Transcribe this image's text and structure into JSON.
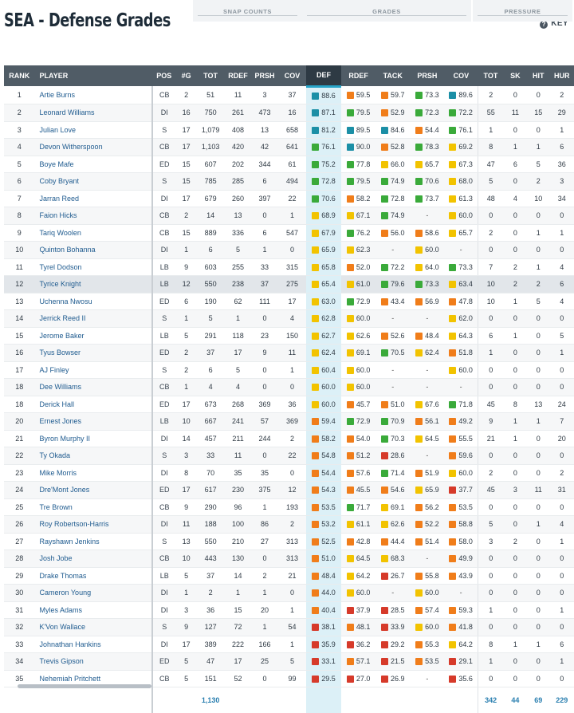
{
  "page": {
    "title": "SEA - Defense Grades",
    "key_label": "KEY"
  },
  "group_headers": {
    "snap_counts": "SNAP COUNTS",
    "grades": "GRADES",
    "pressure": "PRESSURE"
  },
  "columns": [
    "RANK",
    "PLAYER",
    "POS",
    "#G",
    "TOT",
    "RDEF",
    "PRSH",
    "COV",
    "DEF",
    "RDEF",
    "TACK",
    "PRSH",
    "COV",
    "TOT",
    "SK",
    "HIT",
    "HUR"
  ],
  "grade_colors": {
    "elite": "#1b8fa6",
    "good": "#3aaa3a",
    "avg": "#f2c300",
    "below": "#f07d1a",
    "poor": "#d63a2a"
  },
  "rows": [
    [
      "1",
      "Artie Burns",
      "CB",
      "2",
      "51",
      "11",
      "3",
      "37",
      "88.6",
      "59.5",
      "59.7",
      "73.3",
      "89.6",
      "2",
      "0",
      "0",
      "2"
    ],
    [
      "2",
      "Leonard Williams",
      "DI",
      "16",
      "750",
      "261",
      "473",
      "16",
      "87.1",
      "79.5",
      "52.9",
      "72.3",
      "72.2",
      "55",
      "11",
      "15",
      "29"
    ],
    [
      "3",
      "Julian Love",
      "S",
      "17",
      "1,079",
      "408",
      "13",
      "658",
      "81.2",
      "89.5",
      "84.6",
      "54.4",
      "76.1",
      "1",
      "0",
      "0",
      "1"
    ],
    [
      "4",
      "Devon Witherspoon",
      "CB",
      "17",
      "1,103",
      "420",
      "42",
      "641",
      "76.1",
      "90.0",
      "52.8",
      "78.3",
      "69.2",
      "8",
      "1",
      "1",
      "6"
    ],
    [
      "5",
      "Boye Mafe",
      "ED",
      "15",
      "607",
      "202",
      "344",
      "61",
      "75.2",
      "77.8",
      "66.0",
      "65.7",
      "67.3",
      "47",
      "6",
      "5",
      "36"
    ],
    [
      "6",
      "Coby Bryant",
      "S",
      "15",
      "785",
      "285",
      "6",
      "494",
      "72.8",
      "79.5",
      "74.9",
      "70.6",
      "68.0",
      "5",
      "0",
      "2",
      "3"
    ],
    [
      "7",
      "Jarran Reed",
      "DI",
      "17",
      "679",
      "260",
      "397",
      "22",
      "70.6",
      "58.2",
      "72.8",
      "73.7",
      "61.3",
      "48",
      "4",
      "10",
      "34"
    ],
    [
      "8",
      "Faion Hicks",
      "CB",
      "2",
      "14",
      "13",
      "0",
      "1",
      "68.9",
      "67.1",
      "74.9",
      "-",
      "60.0",
      "0",
      "0",
      "0",
      "0"
    ],
    [
      "9",
      "Tariq Woolen",
      "CB",
      "15",
      "889",
      "336",
      "6",
      "547",
      "67.9",
      "76.2",
      "56.0",
      "58.6",
      "65.7",
      "2",
      "0",
      "1",
      "1"
    ],
    [
      "10",
      "Quinton Bohanna",
      "DI",
      "1",
      "6",
      "5",
      "1",
      "0",
      "65.9",
      "62.3",
      "-",
      "60.0",
      "-",
      "0",
      "0",
      "0",
      "0"
    ],
    [
      "11",
      "Tyrel Dodson",
      "LB",
      "9",
      "603",
      "255",
      "33",
      "315",
      "65.8",
      "52.0",
      "72.2",
      "64.0",
      "73.3",
      "7",
      "2",
      "1",
      "4"
    ],
    [
      "12",
      "Tyrice Knight",
      "LB",
      "12",
      "550",
      "238",
      "37",
      "275",
      "65.4",
      "61.0",
      "79.6",
      "73.3",
      "63.4",
      "10",
      "2",
      "2",
      "6"
    ],
    [
      "13",
      "Uchenna Nwosu",
      "ED",
      "6",
      "190",
      "62",
      "111",
      "17",
      "63.0",
      "72.9",
      "43.4",
      "56.9",
      "47.8",
      "10",
      "1",
      "5",
      "4"
    ],
    [
      "14",
      "Jerrick Reed II",
      "S",
      "1",
      "5",
      "1",
      "0",
      "4",
      "62.8",
      "60.0",
      "-",
      "-",
      "62.0",
      "0",
      "0",
      "0",
      "0"
    ],
    [
      "15",
      "Jerome Baker",
      "LB",
      "5",
      "291",
      "118",
      "23",
      "150",
      "62.7",
      "62.6",
      "52.6",
      "48.4",
      "64.3",
      "6",
      "1",
      "0",
      "5"
    ],
    [
      "16",
      "Tyus Bowser",
      "ED",
      "2",
      "37",
      "17",
      "9",
      "11",
      "62.4",
      "69.1",
      "70.5",
      "62.4",
      "51.8",
      "1",
      "0",
      "0",
      "1"
    ],
    [
      "17",
      "AJ Finley",
      "S",
      "2",
      "6",
      "5",
      "0",
      "1",
      "60.4",
      "60.0",
      "-",
      "-",
      "60.0",
      "0",
      "0",
      "0",
      "0"
    ],
    [
      "18",
      "Dee Williams",
      "CB",
      "1",
      "4",
      "4",
      "0",
      "0",
      "60.0",
      "60.0",
      "-",
      "-",
      "-",
      "0",
      "0",
      "0",
      "0"
    ],
    [
      "18",
      "Derick Hall",
      "ED",
      "17",
      "673",
      "268",
      "369",
      "36",
      "60.0",
      "45.7",
      "51.0",
      "67.6",
      "71.8",
      "45",
      "8",
      "13",
      "24"
    ],
    [
      "20",
      "Ernest Jones",
      "LB",
      "10",
      "667",
      "241",
      "57",
      "369",
      "59.4",
      "72.9",
      "70.9",
      "56.1",
      "49.2",
      "9",
      "1",
      "1",
      "7"
    ],
    [
      "21",
      "Byron Murphy II",
      "DI",
      "14",
      "457",
      "211",
      "244",
      "2",
      "58.2",
      "54.0",
      "70.3",
      "64.5",
      "55.5",
      "21",
      "1",
      "0",
      "20"
    ],
    [
      "22",
      "Ty Okada",
      "S",
      "3",
      "33",
      "11",
      "0",
      "22",
      "54.8",
      "51.2",
      "28.6",
      "-",
      "59.6",
      "0",
      "0",
      "0",
      "0"
    ],
    [
      "23",
      "Mike Morris",
      "DI",
      "8",
      "70",
      "35",
      "35",
      "0",
      "54.4",
      "57.6",
      "71.4",
      "51.9",
      "60.0",
      "2",
      "0",
      "0",
      "2"
    ],
    [
      "24",
      "Dre'Mont Jones",
      "ED",
      "17",
      "617",
      "230",
      "375",
      "12",
      "54.3",
      "45.5",
      "54.6",
      "65.9",
      "37.7",
      "45",
      "3",
      "11",
      "31"
    ],
    [
      "25",
      "Tre Brown",
      "CB",
      "9",
      "290",
      "96",
      "1",
      "193",
      "53.5",
      "71.7",
      "69.1",
      "56.2",
      "53.5",
      "0",
      "0",
      "0",
      "0"
    ],
    [
      "26",
      "Roy Robertson-Harris",
      "DI",
      "11",
      "188",
      "100",
      "86",
      "2",
      "53.2",
      "61.1",
      "62.6",
      "52.2",
      "58.8",
      "5",
      "0",
      "1",
      "4"
    ],
    [
      "27",
      "Rayshawn Jenkins",
      "S",
      "13",
      "550",
      "210",
      "27",
      "313",
      "52.5",
      "42.8",
      "44.4",
      "51.4",
      "58.0",
      "3",
      "2",
      "0",
      "1"
    ],
    [
      "28",
      "Josh Jobe",
      "CB",
      "10",
      "443",
      "130",
      "0",
      "313",
      "51.0",
      "64.5",
      "68.3",
      "-",
      "49.9",
      "0",
      "0",
      "0",
      "0"
    ],
    [
      "29",
      "Drake Thomas",
      "LB",
      "5",
      "37",
      "14",
      "2",
      "21",
      "48.4",
      "64.2",
      "26.7",
      "55.8",
      "43.9",
      "0",
      "0",
      "0",
      "0"
    ],
    [
      "30",
      "Cameron Young",
      "DI",
      "1",
      "2",
      "1",
      "1",
      "0",
      "44.0",
      "60.0",
      "-",
      "60.0",
      "-",
      "0",
      "0",
      "0",
      "0"
    ],
    [
      "31",
      "Myles Adams",
      "DI",
      "3",
      "36",
      "15",
      "20",
      "1",
      "40.4",
      "37.9",
      "28.5",
      "57.4",
      "59.3",
      "1",
      "0",
      "0",
      "1"
    ],
    [
      "32",
      "K'Von Wallace",
      "S",
      "9",
      "127",
      "72",
      "1",
      "54",
      "38.1",
      "48.1",
      "33.9",
      "60.0",
      "41.8",
      "0",
      "0",
      "0",
      "0"
    ],
    [
      "33",
      "Johnathan Hankins",
      "DI",
      "17",
      "389",
      "222",
      "166",
      "1",
      "35.9",
      "36.2",
      "29.2",
      "55.3",
      "64.2",
      "8",
      "1",
      "1",
      "6"
    ],
    [
      "34",
      "Trevis Gipson",
      "ED",
      "5",
      "47",
      "17",
      "25",
      "5",
      "33.1",
      "57.1",
      "21.5",
      "53.5",
      "29.1",
      "1",
      "0",
      "0",
      "1"
    ],
    [
      "35",
      "Nehemiah Pritchett",
      "CB",
      "5",
      "151",
      "52",
      "0",
      "99",
      "29.5",
      "27.0",
      "26.9",
      "-",
      "35.6",
      "0",
      "0",
      "0",
      "0"
    ]
  ],
  "totals": {
    "tot_snaps": "1,130",
    "pressure_tot": "342",
    "sk": "44",
    "hit": "69",
    "hur": "229"
  },
  "highlighted_row": 11
}
